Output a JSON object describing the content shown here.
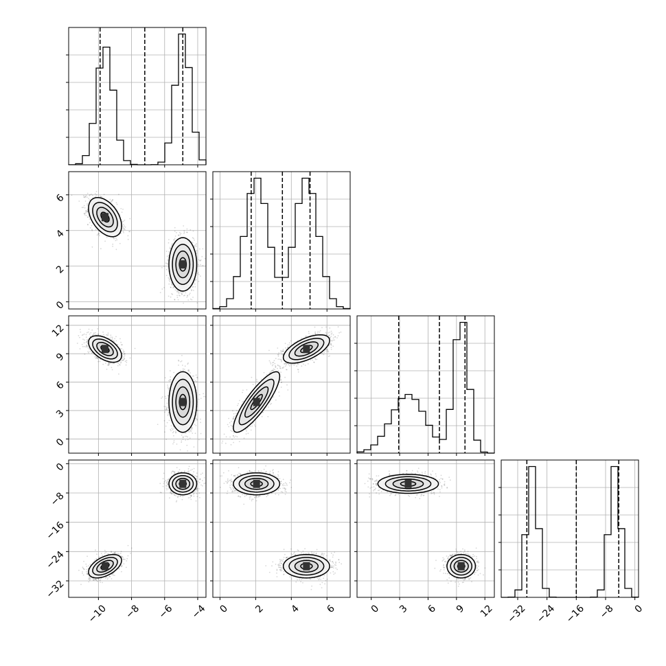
{
  "chart_data": {
    "type": "corner",
    "title": "",
    "params": [
      {
        "label": "",
        "range": [
          -11.8,
          -3.5
        ],
        "ticks": [
          -10,
          -8,
          -6,
          -4
        ],
        "quantiles": [
          -9.9,
          -7.2,
          -4.9
        ],
        "modes": [
          [
            -9.6,
            0.5
          ],
          [
            -4.9,
            0.45
          ]
        ],
        "weights": [
          0.5,
          0.5
        ]
      },
      {
        "label": "",
        "range": [
          -0.4,
          7.3
        ],
        "ticks": [
          0,
          2,
          4,
          6
        ],
        "quantiles": [
          1.75,
          3.5,
          5.05
        ],
        "modes": [
          [
            2.05,
            0.65
          ],
          [
            4.85,
            0.65
          ]
        ],
        "weights": [
          0.5,
          0.5
        ]
      },
      {
        "label": "",
        "range": [
          -1.5,
          13
        ],
        "ticks": [
          0,
          3,
          6,
          9,
          12
        ],
        "quantiles": [
          2.9,
          7.2,
          9.9
        ],
        "modes": [
          [
            3.9,
            1.8
          ],
          [
            9.5,
            0.75
          ]
        ],
        "weights": [
          0.5,
          0.5
        ]
      },
      {
        "label": "",
        "range": [
          -36.5,
          1
        ],
        "ticks": [
          -32,
          -24,
          -16,
          -8,
          0
        ],
        "quantiles": [
          -29.5,
          -16.0,
          -4.4
        ],
        "modes": [
          [
            -28.0,
            1.5
          ],
          [
            -5.5,
            1.5
          ]
        ],
        "weights": [
          0.5,
          0.5
        ]
      }
    ],
    "pairs": [
      {
        "row": 1,
        "col": 0,
        "clusters": [
          {
            "mean": [
              -9.6,
              4.75
            ],
            "sd": [
              0.5,
              0.55
            ],
            "rho": -0.45
          },
          {
            "mean": [
              -4.9,
              2.1
            ],
            "sd": [
              0.42,
              0.75
            ],
            "rho": 0.0
          }
        ]
      },
      {
        "row": 2,
        "col": 0,
        "clusters": [
          {
            "mean": [
              -9.6,
              9.5
            ],
            "sd": [
              0.5,
              0.7
            ],
            "rho": -0.5
          },
          {
            "mean": [
              -4.9,
              3.9
            ],
            "sd": [
              0.42,
              1.6
            ],
            "rho": 0.0
          }
        ]
      },
      {
        "row": 2,
        "col": 1,
        "clusters": [
          {
            "mean": [
              4.85,
              9.5
            ],
            "sd": [
              0.65,
              0.75
            ],
            "rho": 0.6
          },
          {
            "mean": [
              2.05,
              3.9
            ],
            "sd": [
              0.65,
              1.6
            ],
            "rho": 0.85
          }
        ]
      },
      {
        "row": 3,
        "col": 0,
        "clusters": [
          {
            "mean": [
              -4.9,
              -5.5
            ],
            "sd": [
              0.42,
              1.5
            ],
            "rho": 0.0
          },
          {
            "mean": [
              -9.6,
              -28.0
            ],
            "sd": [
              0.5,
              1.6
            ],
            "rho": 0.5
          }
        ]
      },
      {
        "row": 3,
        "col": 1,
        "clusters": [
          {
            "mean": [
              2.05,
              -5.5
            ],
            "sd": [
              0.65,
              1.5
            ],
            "rho": 0.0
          },
          {
            "mean": [
              4.85,
              -28.0
            ],
            "sd": [
              0.65,
              1.6
            ],
            "rho": 0.0
          }
        ]
      },
      {
        "row": 3,
        "col": 2,
        "clusters": [
          {
            "mean": [
              3.9,
              -5.5
            ],
            "sd": [
              1.6,
              1.3
            ],
            "rho": 0.0
          },
          {
            "mean": [
              9.5,
              -28.0
            ],
            "sd": [
              0.75,
              1.6
            ],
            "rho": 0.0
          }
        ]
      }
    ],
    "grid": true,
    "contour_levels": [
      "0.5 sigma",
      "1.0 sigma",
      "1.5 sigma",
      "2.0 sigma"
    ]
  }
}
